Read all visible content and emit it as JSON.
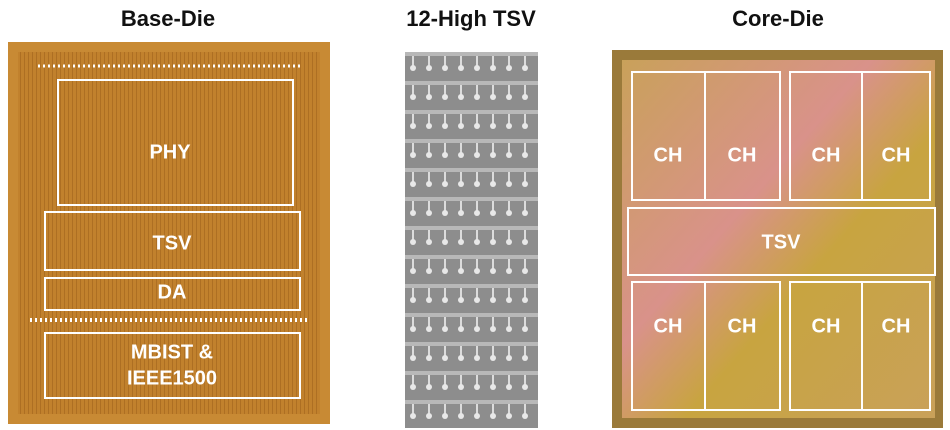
{
  "panels": [
    {
      "title": "Base-Die",
      "regions": [
        {
          "label": [
            "PHY"
          ]
        },
        {
          "label": [
            "TSV"
          ]
        },
        {
          "label": [
            "DA"
          ]
        },
        {
          "label": [
            "MBIST &",
            "IEEE1500"
          ]
        }
      ]
    },
    {
      "title": "12-High TSV"
    },
    {
      "title": "Core-Die",
      "regions": [
        {
          "label": [
            "CH"
          ]
        },
        {
          "label": [
            "CH"
          ]
        },
        {
          "label": [
            "CH"
          ]
        },
        {
          "label": [
            "CH"
          ]
        },
        {
          "label": [
            "TSV"
          ]
        },
        {
          "label": [
            "CH"
          ]
        },
        {
          "label": [
            "CH"
          ]
        },
        {
          "label": [
            "CH"
          ]
        },
        {
          "label": [
            "CH"
          ]
        }
      ]
    }
  ]
}
